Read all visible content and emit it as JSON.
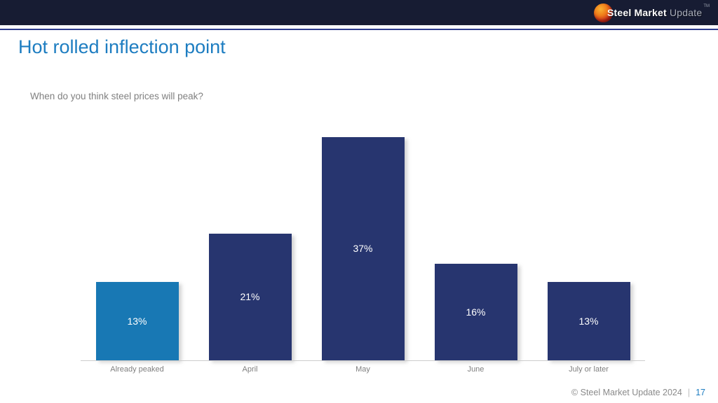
{
  "header": {
    "brand_part1": "Steel Market",
    "brand_part2": " Update",
    "brand_tm": "TM"
  },
  "title": "Hot rolled inflection point",
  "subtitle": "When do you think steel prices will peak?",
  "chart_data": {
    "type": "bar",
    "title": "When do you think steel prices will peak?",
    "categories": [
      "Already peaked",
      "April",
      "May",
      "June",
      "July or later"
    ],
    "values": [
      13,
      21,
      37,
      16,
      13
    ],
    "value_labels": [
      "13%",
      "21%",
      "37%",
      "16%",
      "13%"
    ],
    "xlabel": "",
    "ylabel": "",
    "ylim": [
      0,
      38
    ],
    "grid": false,
    "legend": false,
    "bar_colors": [
      "#1878b4",
      "#27356f",
      "#27356f",
      "#27356f",
      "#27356f"
    ],
    "label_position": "inside-center",
    "label_color": "#ffffff"
  },
  "footer": {
    "copyright": "© Steel Market Update 2024",
    "separator": "|",
    "page_number": "17"
  }
}
